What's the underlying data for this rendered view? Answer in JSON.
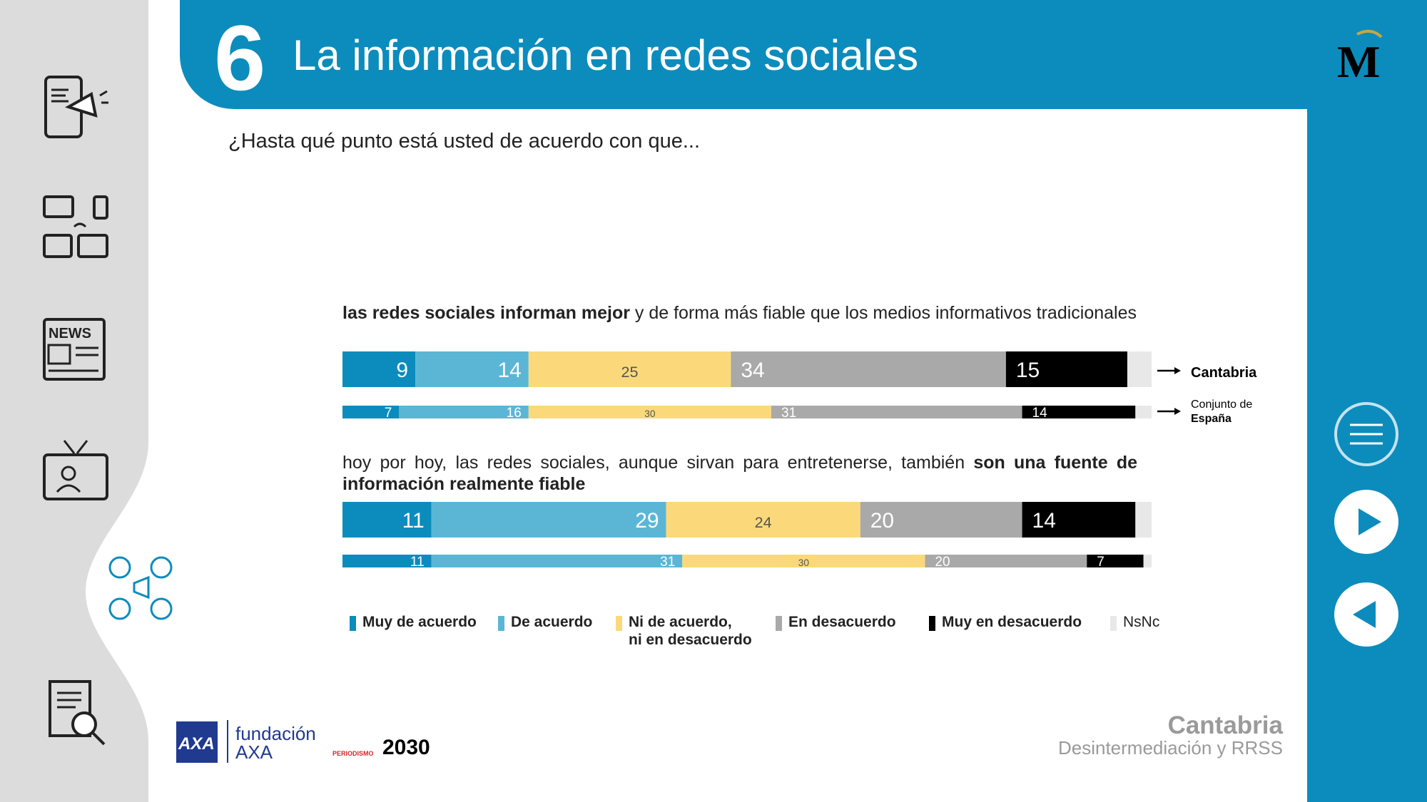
{
  "header": {
    "number": "6",
    "title": "La información en redes sociales"
  },
  "question": "¿Hasta qué punto está usted de acuerdo con que...",
  "statements": [
    {
      "bold_lead": "las redes sociales informan mejor",
      "rest": " y de forma más fiable que los medios informativos tradicionales"
    },
    {
      "lead": "hoy por hoy, las redes sociales, aunque sirvan para entretenerse, también ",
      "bold_tail": "son una fuente de información realmente fiable"
    }
  ],
  "row_labels": {
    "cantabria": "Cantabria",
    "espana_line1": "Conjunto de",
    "espana_line2": "España"
  },
  "legend": [
    {
      "label": "Muy de acuerdo",
      "color": "#0b8cbd"
    },
    {
      "label": "De acuerdo",
      "color": "#5bb6d6"
    },
    {
      "label": "Ni de acuerdo,",
      "label2": "ni en desacuerdo",
      "color": "#fbd97a"
    },
    {
      "label": "En desacuerdo",
      "color": "#a9a9a9"
    },
    {
      "label": "Muy en desacuerdo",
      "color": "#000000"
    },
    {
      "label": "NsNc",
      "color": "#e8e8e8"
    }
  ],
  "chart_data": {
    "type": "bar",
    "stacked": true,
    "orientation": "horizontal",
    "xlim": [
      0,
      100
    ],
    "categories": [
      "Muy de acuerdo",
      "De acuerdo",
      "Ni de acuerdo, ni en desacuerdo",
      "En desacuerdo",
      "Muy en desacuerdo",
      "NsNc"
    ],
    "groups": [
      {
        "statement": 0,
        "series": [
          {
            "name": "Cantabria",
            "values": [
              9,
              14,
              25,
              34,
              15,
              3
            ],
            "labels": [
              "9",
              "14",
              "25",
              "34",
              "15",
              ""
            ]
          },
          {
            "name": "Conjunto de España",
            "values": [
              7,
              16,
              30,
              31,
              14,
              2
            ],
            "labels": [
              "7",
              "16",
              "30",
              "31",
              "14",
              ""
            ]
          }
        ]
      },
      {
        "statement": 1,
        "series": [
          {
            "name": "Cantabria",
            "values": [
              11,
              29,
              24,
              20,
              14,
              2
            ],
            "labels": [
              "11",
              "29",
              "24",
              "20",
              "14",
              ""
            ]
          },
          {
            "name": "Conjunto de España",
            "values": [
              11,
              31,
              30,
              20,
              7,
              1
            ],
            "labels": [
              "11",
              "31",
              "30",
              "20",
              "7",
              ""
            ]
          }
        ]
      }
    ],
    "colors": [
      "#0b8cbd",
      "#5bb6d6",
      "#fbd97a",
      "#a9a9a9",
      "#000000",
      "#e8e8e8"
    ],
    "label_colors": [
      "#ffffff",
      "#ffffff",
      "#555555",
      "#ffffff",
      "#ffffff",
      "#555555"
    ]
  },
  "footer": {
    "region": "Cantabria",
    "subtitle": "Desintermediación y RRSS",
    "brand_axa": "AXA",
    "brand_fund_1": "fundación",
    "brand_fund_2": "AXA",
    "brand_2030": "2030",
    "brand_periodismo": "PERIODISMO"
  }
}
